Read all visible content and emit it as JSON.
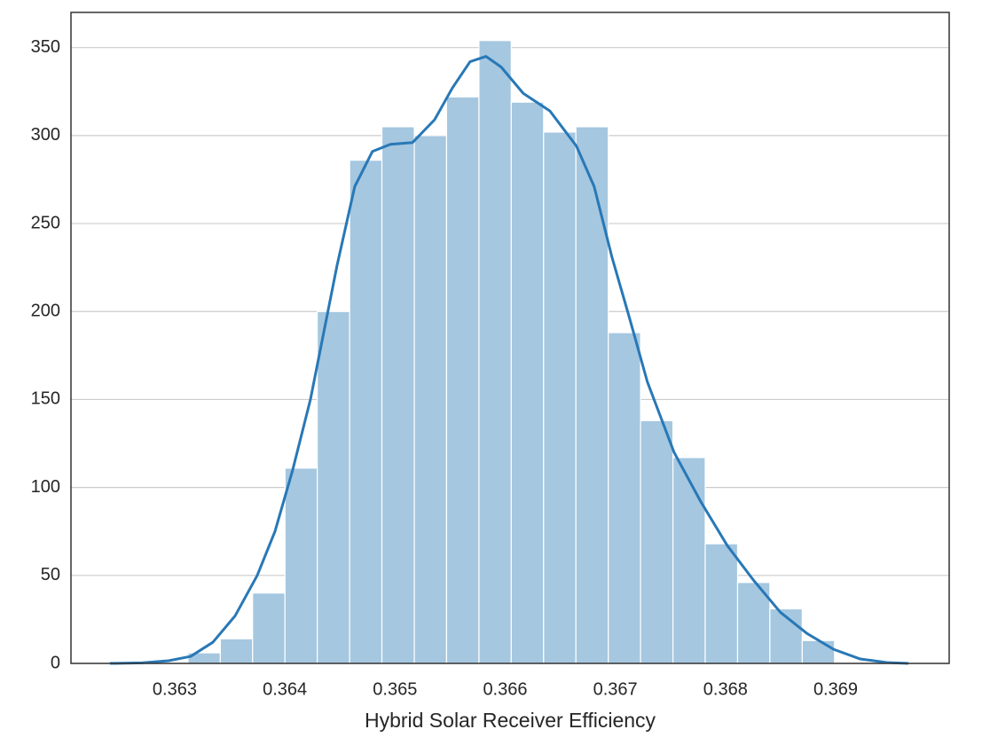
{
  "chart_data": {
    "type": "histogram",
    "xlabel": "Hybrid Solar Receiver Efficiency",
    "bins": [
      0.36312,
      0.363414,
      0.363707,
      0.364001,
      0.364294,
      0.364588,
      0.364881,
      0.365175,
      0.365468,
      0.365762,
      0.366055,
      0.366349,
      0.366642,
      0.366936,
      0.367229,
      0.367523,
      0.367816,
      0.36811,
      0.368403,
      0.368697,
      0.36899
    ],
    "values": [
      6,
      14,
      40,
      111,
      200,
      286,
      305,
      300,
      322,
      354,
      319,
      302,
      305,
      188,
      138,
      117,
      68,
      46,
      31,
      13
    ],
    "color": "#a5c7e0",
    "kde": {
      "color": "#2878b6",
      "x": [
        0.362412,
        0.362702,
        0.362944,
        0.363145,
        0.363346,
        0.363548,
        0.363749,
        0.36391,
        0.364071,
        0.364232,
        0.364473,
        0.364634,
        0.364795,
        0.364957,
        0.365158,
        0.365359,
        0.36552,
        0.365681,
        0.365826,
        0.365963,
        0.366164,
        0.366406,
        0.366647,
        0.366808,
        0.366969,
        0.36713,
        0.367291,
        0.367533,
        0.367775,
        0.368016,
        0.368258,
        0.368499,
        0.368741,
        0.368982,
        0.369224,
        0.369465,
        0.36966
      ],
      "values": [
        0,
        0.3,
        1.5,
        4,
        12,
        27,
        50,
        75,
        110,
        150,
        226,
        271,
        291,
        295,
        296,
        309,
        327,
        342,
        345,
        339,
        324,
        314,
        294,
        271,
        231,
        196,
        160,
        120,
        92,
        67,
        47,
        29,
        17,
        8,
        2.5,
        0.5,
        0
      ]
    },
    "xlim": [
      0.362058,
      0.370031
    ],
    "ylim": [
      0,
      370
    ],
    "xticks": [
      0.363,
      0.364,
      0.365,
      0.366,
      0.367,
      0.368,
      0.369
    ],
    "yticks": [
      0,
      50,
      100,
      150,
      200,
      250,
      300,
      350
    ],
    "grid": true
  }
}
